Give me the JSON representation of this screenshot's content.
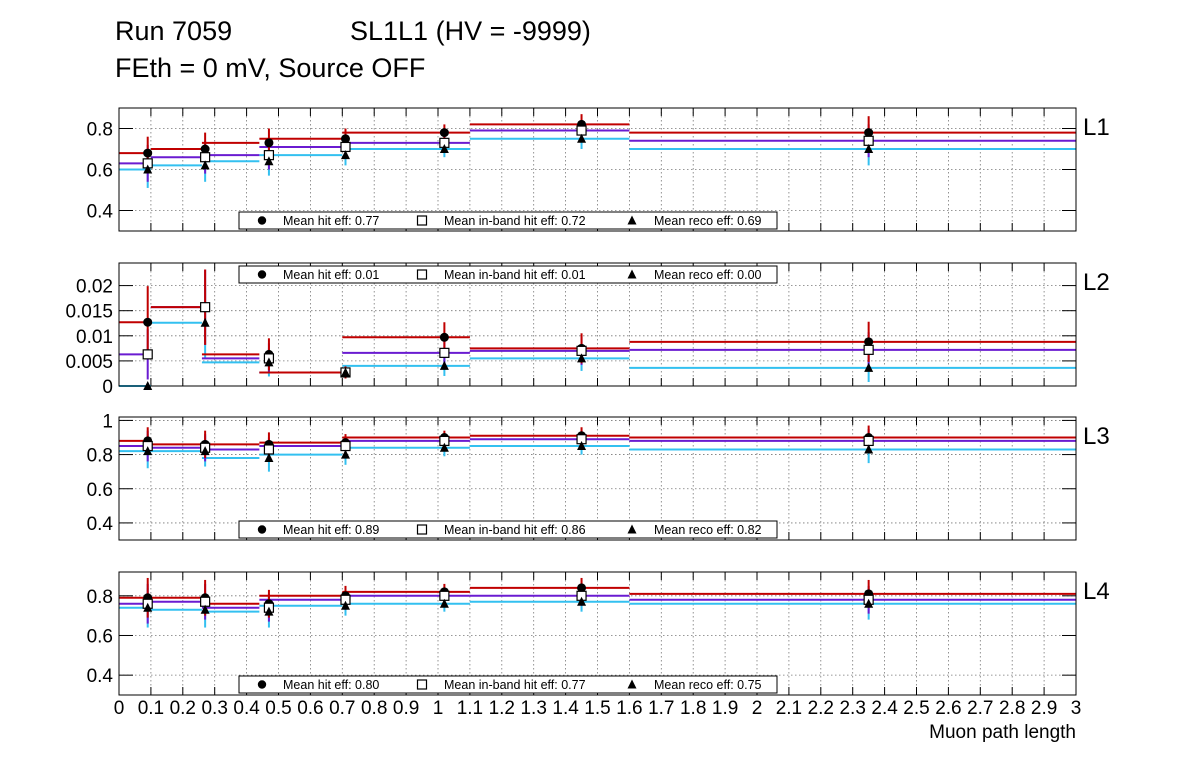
{
  "header": {
    "run": "Run 7059",
    "chamber": "SL1L1 (HV = -9999)",
    "conditions": "FEth = 0 mV, Source OFF"
  },
  "colors": {
    "hit": "#c00000",
    "inband": "#6a1bd1",
    "reco": "#33c0f0",
    "marker": "#000000"
  },
  "chart_data": {
    "type": "scatter",
    "xlabel": "Muon path length",
    "xlim": [
      0,
      3
    ],
    "x_tick_labels": [
      "0",
      "0.1",
      "0.2",
      "0.3",
      "0.4",
      "0.5",
      "0.6",
      "0.7",
      "0.8",
      "0.9",
      "1",
      "1.1",
      "1.2",
      "1.3",
      "1.4",
      "1.5",
      "1.6",
      "1.7",
      "1.8",
      "1.9",
      "2",
      "2.1",
      "2.2",
      "2.3",
      "2.4",
      "2.5",
      "2.6",
      "2.7",
      "2.8",
      "2.9",
      "3"
    ],
    "x_tick_values": [
      0,
      0.1,
      0.2,
      0.3,
      0.4,
      0.5,
      0.6,
      0.7,
      0.8,
      0.9,
      1,
      1.1,
      1.2,
      1.3,
      1.4,
      1.5,
      1.6,
      1.7,
      1.8,
      1.9,
      2,
      2.1,
      2.2,
      2.3,
      2.4,
      2.5,
      2.6,
      2.7,
      2.8,
      2.9,
      3
    ],
    "bin_edges": [
      0,
      0.1,
      0.26,
      0.44,
      0.7,
      1.1,
      1.6,
      3
    ],
    "point_x": [
      0.09,
      0.27,
      0.47,
      0.71,
      1.02,
      1.45,
      2.35
    ],
    "grid": true,
    "panels": [
      {
        "name": "L1",
        "ylim": [
          0.3,
          0.9
        ],
        "yticks": [
          0.4,
          0.6,
          0.8
        ],
        "ytick_labels": [
          "0.4",
          "0.6",
          "0.8"
        ],
        "legend_position": "bottom",
        "legend": [
          "Mean hit  eff: 0.77",
          "Mean in-band hit eff: 0.72",
          "Mean reco eff: 0.69"
        ],
        "series": [
          {
            "name": "Mean hit  eff",
            "values": [
              0.68,
              0.7,
              0.73,
              0.75,
              0.78,
              0.82,
              0.78
            ],
            "err": [
              0.08,
              0.08,
              0.07,
              0.05,
              0.04,
              0.05,
              0.08
            ]
          },
          {
            "name": "Mean in-band hit eff",
            "values": [
              0.63,
              0.66,
              0.67,
              0.71,
              0.73,
              0.79,
              0.74
            ],
            "err": [
              0.09,
              0.08,
              0.07,
              0.05,
              0.04,
              0.05,
              0.08
            ]
          },
          {
            "name": "Mean reco eff",
            "values": [
              0.6,
              0.62,
              0.64,
              0.67,
              0.7,
              0.75,
              0.7
            ],
            "err": [
              0.09,
              0.08,
              0.07,
              0.05,
              0.04,
              0.05,
              0.08
            ]
          }
        ]
      },
      {
        "name": "L2",
        "ylim": [
          0,
          0.0245
        ],
        "yticks": [
          0,
          0.005,
          0.01,
          0.015,
          0.02
        ],
        "ytick_labels": [
          "0",
          "0.005",
          "0.01",
          "0.015",
          "0.02"
        ],
        "legend_position": "top",
        "legend": [
          "Mean hit  eff: 0.01",
          "Mean in-band hit eff: 0.01",
          "Mean reco eff: 0.00"
        ],
        "series": [
          {
            "name": "Mean hit  eff",
            "values": [
              0.0127,
              0.0157,
              0.0063,
              0.0027,
              0.0097,
              0.0075,
              0.0088
            ],
            "err": [
              0.0072,
              0.0075,
              0.0032,
              0.0012,
              0.003,
              0.003,
              0.004
            ]
          },
          {
            "name": "Mean in-band hit eff",
            "values": [
              0.0063,
              0.0157,
              0.0055,
              0.0027,
              0.0066,
              0.007,
              0.0072
            ],
            "err": [
              0.005,
              0.0075,
              0.003,
              0.0012,
              0.0025,
              0.0028,
              0.0035
            ]
          },
          {
            "name": "Mean reco eff",
            "values": [
              0.0,
              0.0126,
              0.0047,
              0.0027,
              0.004,
              0.0055,
              0.0036
            ],
            "err": [
              0.0,
              0.007,
              0.0028,
              0.0012,
              0.002,
              0.0025,
              0.0028
            ]
          }
        ]
      },
      {
        "name": "L3",
        "ylim": [
          0.3,
          1.02
        ],
        "yticks": [
          0.4,
          0.6,
          0.8,
          1
        ],
        "ytick_labels": [
          "0.4",
          "0.6",
          "0.8",
          "1"
        ],
        "legend_position": "bottom",
        "legend": [
          "Mean hit  eff: 0.89",
          "Mean in-band hit eff: 0.86",
          "Mean reco eff: 0.82"
        ],
        "series": [
          {
            "name": "Mean hit  eff",
            "values": [
              0.88,
              0.86,
              0.86,
              0.87,
              0.9,
              0.91,
              0.9
            ],
            "err": [
              0.08,
              0.08,
              0.07,
              0.05,
              0.04,
              0.05,
              0.07
            ]
          },
          {
            "name": "Mean in-band hit eff",
            "values": [
              0.85,
              0.84,
              0.83,
              0.85,
              0.88,
              0.89,
              0.88
            ],
            "err": [
              0.09,
              0.08,
              0.07,
              0.05,
              0.04,
              0.05,
              0.07
            ]
          },
          {
            "name": "Mean reco eff",
            "values": [
              0.82,
              0.82,
              0.78,
              0.8,
              0.84,
              0.85,
              0.83
            ],
            "err": [
              0.1,
              0.09,
              0.08,
              0.06,
              0.05,
              0.05,
              0.08
            ]
          }
        ]
      },
      {
        "name": "L4",
        "ylim": [
          0.3,
          0.92
        ],
        "yticks": [
          0.4,
          0.6,
          0.8
        ],
        "ytick_labels": [
          "0.4",
          "0.6",
          "0.8"
        ],
        "legend_position": "bottom",
        "legend": [
          "Mean hit  eff: 0.80",
          "Mean in-band hit eff: 0.77",
          "Mean reco eff: 0.75"
        ],
        "series": [
          {
            "name": "Mean hit  eff",
            "values": [
              0.79,
              0.79,
              0.76,
              0.8,
              0.82,
              0.84,
              0.81
            ],
            "err": [
              0.1,
              0.09,
              0.07,
              0.05,
              0.04,
              0.05,
              0.07
            ]
          },
          {
            "name": "Mean in-band hit eff",
            "values": [
              0.76,
              0.77,
              0.74,
              0.78,
              0.8,
              0.8,
              0.78
            ],
            "err": [
              0.1,
              0.09,
              0.07,
              0.05,
              0.04,
              0.05,
              0.07
            ]
          },
          {
            "name": "Mean reco eff",
            "values": [
              0.74,
              0.73,
              0.72,
              0.75,
              0.76,
              0.77,
              0.76
            ],
            "err": [
              0.1,
              0.09,
              0.08,
              0.05,
              0.04,
              0.05,
              0.08
            ]
          }
        ]
      }
    ]
  }
}
